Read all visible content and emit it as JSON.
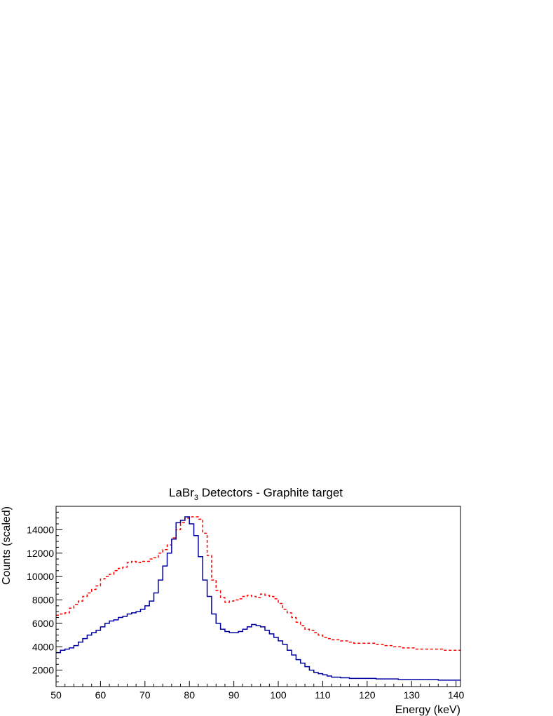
{
  "chart_data": {
    "type": "line",
    "title": {
      "prefix": "LaBr",
      "subscript": "3",
      "suffix": " Detectors - Graphite target"
    },
    "xlabel": "Energy (keV)",
    "ylabel": "Counts (scaled)",
    "xlim": [
      50,
      141
    ],
    "ylim": [
      600,
      16000
    ],
    "xticks": [
      50,
      60,
      70,
      80,
      90,
      100,
      110,
      120,
      130,
      140
    ],
    "yticks": [
      2000,
      4000,
      6000,
      8000,
      10000,
      12000,
      14000
    ],
    "bin_width": 1,
    "x_start": 50,
    "grid": false,
    "legend": "none",
    "series": [
      {
        "color": "#ff0000",
        "style": "dashed-step",
        "values": [
          6700,
          6800,
          6900,
          7300,
          7600,
          7900,
          8300,
          8600,
          8900,
          9200,
          9800,
          10000,
          10200,
          10500,
          10700,
          10800,
          11200,
          11300,
          11200,
          11300,
          11300,
          11500,
          11600,
          12000,
          12300,
          12700,
          13300,
          14000,
          14600,
          15000,
          15100,
          15100,
          14900,
          13700,
          11800,
          9700,
          8800,
          8200,
          7800,
          7900,
          8000,
          8100,
          8300,
          8400,
          8300,
          8200,
          8500,
          8400,
          8300,
          8100,
          7700,
          7200,
          6900,
          6500,
          6100,
          5800,
          5500,
          5400,
          5200,
          5000,
          4800,
          4700,
          4600,
          4600,
          4500,
          4500,
          4400,
          4300,
          4300,
          4300,
          4300,
          4300,
          4200,
          4200,
          4100,
          4100,
          4000,
          4000,
          3900,
          3900,
          3900,
          3800,
          3800,
          3800,
          3800,
          3800,
          3800,
          3700,
          3700,
          3700,
          3700
        ]
      },
      {
        "color": "#0000a0",
        "style": "solid-step",
        "values": [
          3500,
          3700,
          3800,
          3900,
          4100,
          4400,
          4700,
          5000,
          5200,
          5400,
          5700,
          6000,
          6200,
          6300,
          6500,
          6600,
          6800,
          6900,
          7000,
          7200,
          7500,
          7900,
          8600,
          9700,
          10900,
          12000,
          13200,
          14600,
          14800,
          15100,
          14500,
          13500,
          11700,
          9700,
          8300,
          6800,
          6000,
          5500,
          5300,
          5200,
          5200,
          5300,
          5500,
          5700,
          5900,
          5800,
          5700,
          5400,
          5100,
          4800,
          4500,
          4200,
          3700,
          3300,
          2900,
          2600,
          2300,
          2000,
          1800,
          1700,
          1600,
          1500,
          1400,
          1400,
          1350,
          1350,
          1300,
          1300,
          1300,
          1300,
          1300,
          1300,
          1250,
          1250,
          1250,
          1250,
          1250,
          1200,
          1200,
          1200,
          1200,
          1200,
          1200,
          1200,
          1200,
          1200,
          1150,
          1150,
          1150,
          1150,
          1150
        ]
      }
    ]
  }
}
